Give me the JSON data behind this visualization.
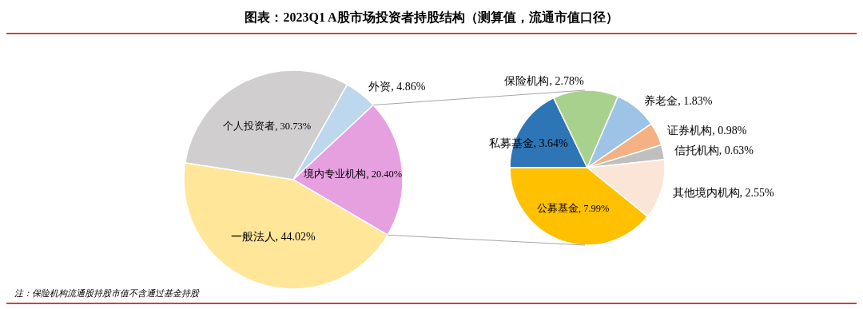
{
  "chart_data": [
    {
      "type": "pie",
      "title": "图表：2023Q1 A股市场投资者持股结构（测算值，流通市值口径）",
      "categories": [
        "外资",
        "境内专业机构",
        "一般法人",
        "个人投资者"
      ],
      "values": [
        4.86,
        20.4,
        44.02,
        30.73
      ],
      "value_labels": [
        "4.86%",
        "20.40%",
        "44.02%",
        "30.73%"
      ],
      "colors": [
        "#bdd7ee",
        "#e6a0e0",
        "#ffe699",
        "#d0cece"
      ],
      "annotations": [
        "注：保险机构流通股持股市值不含通过基金持股"
      ]
    },
    {
      "type": "pie",
      "categories": [
        "私募基金",
        "保险机构",
        "养老金",
        "证券机构",
        "信托机构",
        "其他境内机构",
        "公募基金"
      ],
      "values": [
        3.64,
        2.78,
        1.83,
        0.98,
        0.63,
        2.55,
        7.99
      ],
      "value_labels": [
        "3.64%",
        "2.78%",
        "1.83%",
        "0.98%",
        "0.63%",
        "2.55%",
        "7.99%"
      ],
      "colors": [
        "#2e75b6",
        "#a9d18e",
        "#9dc3e6",
        "#f4b183",
        "#bfbfbf",
        "#fbe5d6",
        "#ffc000"
      ]
    }
  ]
}
